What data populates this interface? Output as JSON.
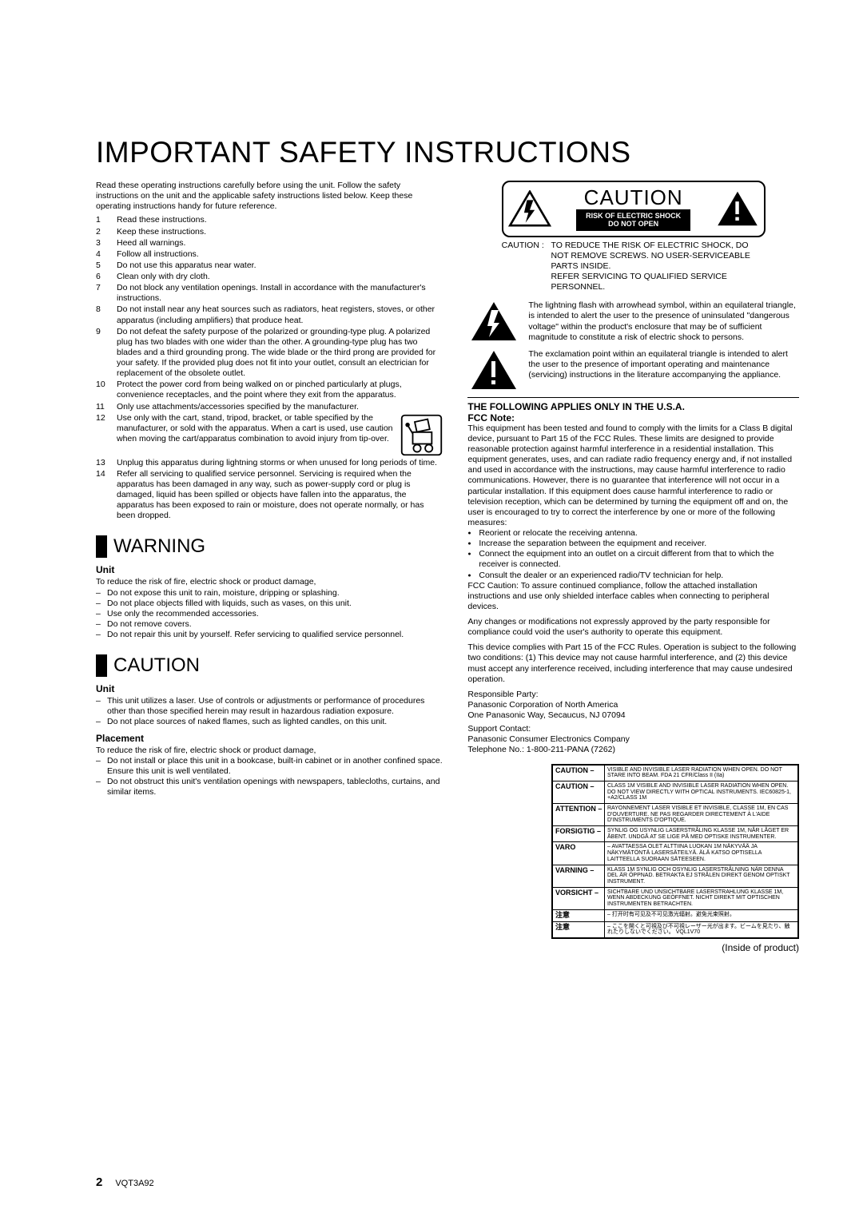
{
  "title": "IMPORTANT SAFETY INSTRUCTIONS",
  "intro": "Read these operating instructions carefully before using the unit. Follow the safety instructions on the unit and the applicable safety instructions listed below. Keep these operating instructions handy for future reference.",
  "numbered": [
    "Read these instructions.",
    "Keep these instructions.",
    "Heed all warnings.",
    "Follow all instructions.",
    "Do not use this apparatus near water.",
    "Clean only with dry cloth.",
    "Do not block any ventilation openings. Install in accordance with the manufacturer's instructions.",
    "Do not install near any heat sources such as radiators, heat registers, stoves, or other apparatus (including amplifiers) that produce heat.",
    "Do not defeat the safety purpose of the polarized or grounding-type plug. A polarized plug has two blades with one wider than the other. A grounding-type plug has two blades and a third grounding prong. The wide blade or the third prong are provided for your safety. If the provided plug does not fit into your outlet, consult an electrician for replacement of the obsolete outlet.",
    "Protect the power cord from being walked on or pinched particularly at plugs, convenience receptacles, and the point where they exit from the apparatus.",
    "Only use attachments/accessories specified by the manufacturer.",
    "Use only with the cart, stand, tripod, bracket, or table specified by the manufacturer, or sold with the apparatus. When a cart is used, use caution when moving the cart/apparatus combination to avoid injury from tip-over.",
    "Unplug this apparatus during lightning storms or when unused for long periods of time.",
    "Refer all servicing to qualified service personnel. Servicing is required when the apparatus has been damaged in any way, such as power-supply cord or plug is damaged, liquid has been spilled or objects have fallen into the apparatus, the apparatus has been exposed to rain or moisture, does not operate normally, or has been dropped."
  ],
  "warning_title": "WARNING",
  "warning_unit_head": "Unit",
  "warning_unit_intro": "To reduce the risk of fire, electric shock or product damage,",
  "warning_unit_items": [
    "Do not expose this unit to rain, moisture, dripping or splashing.",
    "Do not place objects filled with liquids, such as vases, on this unit.",
    "Use only the recommended accessories.",
    "Do not remove covers.",
    "Do not repair this unit by yourself. Refer servicing to qualified service personnel."
  ],
  "caution_title": "CAUTION",
  "caution_unit_head": "Unit",
  "caution_unit_items": [
    "This unit utilizes a laser. Use of controls or adjustments or performance of procedures other than those specified herein may result in hazardous radiation exposure.",
    "Do not place sources of naked flames, such as lighted candles, on this unit."
  ],
  "placement_head": "Placement",
  "placement_intro": "To reduce the risk of fire, electric shock or product damage,",
  "placement_items": [
    "Do not install or place this unit in a bookcase, built-in cabinet or in another confined space. Ensure this unit is well ventilated.",
    "Do not obstruct this unit's ventilation openings with newspapers, tablecloths, curtains, and similar items."
  ],
  "caution_box": {
    "big": "CAUTION",
    "risk_line1": "RISK OF ELECTRIC SHOCK",
    "risk_line2": "DO NOT OPEN"
  },
  "caution_sub_label": "CAUTION :   ",
  "caution_sub_text": "TO REDUCE THE RISK OF ELECTRIC SHOCK, DO NOT REMOVE SCREWS. NO USER-SERVICEABLE PARTS INSIDE.\nREFER SERVICING TO QUALIFIED SERVICE PERSONNEL.",
  "tri1": "The lightning flash with arrowhead symbol, within an equilateral triangle, is intended to alert the user to the presence of uninsulated \"dangerous voltage\" within the product's enclosure that may be of sufficient magnitude to constitute a risk of electric shock to persons.",
  "tri2": "The exclamation point within an equilateral triangle is intended to alert the user to the presence of important operating and maintenance (servicing) instructions in the literature accompanying the appliance.",
  "usa_head": "THE FOLLOWING APPLIES ONLY IN THE U.S.A.",
  "fcc_head": "FCC Note:",
  "fcc_body": "This equipment has been tested and found to comply with the limits for a Class B digital device, pursuant to Part 15 of the FCC Rules. These limits are designed to provide reasonable protection against harmful interference in a residential installation. This equipment generates, uses, and can radiate radio frequency energy and, if not installed and used in accordance with the instructions, may cause harmful interference to radio communications. However, there is no guarantee that interference will not occur in a particular installation. If this equipment does cause harmful interference to radio or television reception, which can be determined by turning the equipment off and on, the user is encouraged to try to correct the interference by one or more of the following measures:",
  "fcc_bullets": [
    "Reorient or relocate the receiving antenna.",
    "Increase the separation between the equipment and receiver.",
    "Connect the equipment into an outlet on a circuit different from that to which the receiver is connected.",
    "Consult the dealer or an experienced radio/TV technician for help."
  ],
  "fcc_para2": "FCC Caution: To assure continued compliance, follow the attached installation instructions and use only shielded interface cables when connecting to peripheral devices.",
  "fcc_para3": "Any changes or modifications not expressly approved by the party responsible for compliance could void the user's authority to operate this equipment.",
  "fcc_para4": "This device complies with Part 15 of the FCC Rules. Operation is subject to the following two conditions: (1) This device may not cause harmful interference, and (2) this device must accept any interference received, including interference that may cause undesired operation.",
  "resp_party": "Responsible Party:",
  "resp_party_lines": "Panasonic Corporation of North America\nOne Panasonic Way, Secaucus, NJ 07094",
  "support_head": "Support Contact:",
  "support_lines": "Panasonic Consumer Electronics Company\nTelephone No.: 1-800-211-PANA (7262)",
  "label_rows": [
    {
      "tag": "CAUTION –",
      "desc": "VISIBLE AND INVISIBLE LASER RADIATION WHEN OPEN. DO NOT STARE INTO BEAM.                 FDA 21 CFR/Class II (IIa)"
    },
    {
      "tag": "CAUTION –",
      "desc": "CLASS 1M VISIBLE AND INVISIBLE LASER RADIATION WHEN OPEN. DO NOT VIEW DIRECTLY WITH OPTICAL INSTRUMENTS.   IEC60825-1, +A2/CLASS 1M"
    },
    {
      "tag": "ATTENTION –",
      "desc": "RAYONNEMENT LASER VISIBLE ET INVISIBLE, CLASSE 1M, EN CAS D'OUVERTURE. NE PAS REGARDER DIRECTEMENT À L'AIDE D'INSTRUMENTS D'OPTIQUE."
    },
    {
      "tag": "FORSIGTIG –",
      "desc": "SYNLIG OG USYNLIG LASERSTRÅLING KLASSE 1M, NÅR LÅGET ER ÅBENT. UNDGÅ AT SE LIGE PÅ MED OPTISKE INSTRUMENTER."
    },
    {
      "tag": "VARO",
      "desc": "– AVATTAESSA OLET ALTTIINA LUOKAN 1M NÄKYVÄÄ JA NÄKYMÄTÖNTÄ LASERSÄTEILYÄ. ÄLÄ KATSO OPTISELLA LAITTEELLA SUORAAN SÄTEESEEN."
    },
    {
      "tag": "VARNING –",
      "desc": "KLASS 1M SYNLIG OCH OSYNLIG LASERSTRÅLNING NÄR DENNA DEL ÄR ÖPPNAD. BETRAKTA EJ STRÅLEN DIREKT GENOM OPTISKT INSTRUMENT."
    },
    {
      "tag": "VORSICHT –",
      "desc": "SICHTBARE UND UNSICHTBARE LASERSTRAHLUNG KLASSE 1M, WENN ABDECKUNG GEÖFFNET. NICHT DIREKT MIT OPTISCHEN INSTRUMENTEN BETRACHTEN."
    },
    {
      "tag": "注意",
      "desc": "– 打开时有可见及不可见激光辐射。避免光束照射。"
    },
    {
      "tag": "注意",
      "desc": "– ここを開くと可視及び不可視レーザー光が出ます。ビームを見たり、触れたりしないでください。             VQL1V70"
    }
  ],
  "inside_label": "(Inside of product)",
  "page_num": "2",
  "doc_code": "VQT3A92"
}
